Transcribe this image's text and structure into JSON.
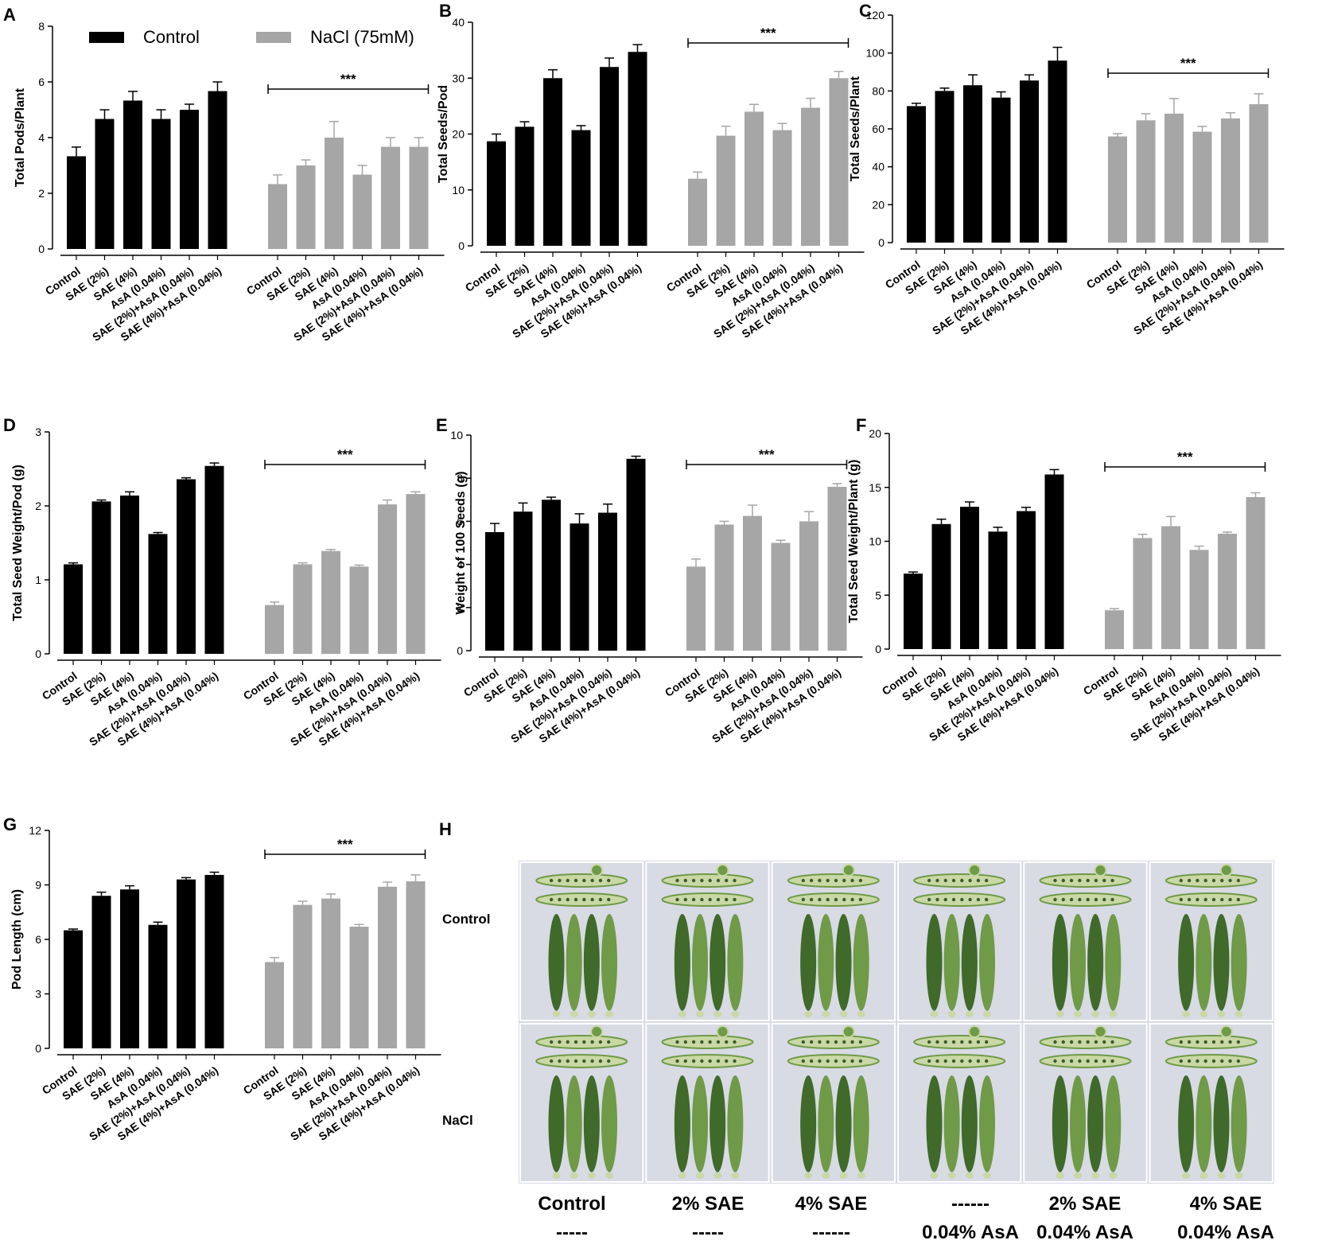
{
  "chart_data": [
    {
      "panel": "A",
      "type": "bar",
      "ylabel": "Total Pods/Plant",
      "ylim": [
        0,
        8
      ],
      "yticks": [
        0,
        2,
        4,
        6,
        8
      ],
      "categories": [
        "Control",
        "SAE (2%)",
        "SAE (4%)",
        "AsA (0.04%)",
        "SAE (2%)+AsA (0.04%)",
        "SAE (4%)+AsA (0.04%)"
      ],
      "series": [
        {
          "name": "Control",
          "color": "#000000",
          "values": [
            3.33,
            4.67,
            5.33,
            4.67,
            5.0,
            5.67
          ],
          "errors": [
            0.33,
            0.33,
            0.33,
            0.33,
            0.2,
            0.33
          ]
        },
        {
          "name": "NaCl (75mM)",
          "color": "#a6a6a6",
          "values": [
            2.33,
            3.0,
            4.0,
            2.67,
            3.67,
            3.67
          ],
          "errors": [
            0.33,
            0.2,
            0.58,
            0.33,
            0.33,
            0.33
          ]
        }
      ],
      "significance": "***"
    },
    {
      "panel": "B",
      "type": "bar",
      "ylabel": "Total Seeds/Pod",
      "ylim": [
        0,
        40
      ],
      "yticks": [
        0,
        10,
        20,
        30,
        40
      ],
      "categories": [
        "Control",
        "SAE (2%)",
        "SAE (4%)",
        "AsA (0.04%)",
        "SAE (2%)+AsA (0.04%)",
        "SAE (4%)+AsA (0.04%)"
      ],
      "series": [
        {
          "name": "Control",
          "color": "#000000",
          "values": [
            18.7,
            21.3,
            30.0,
            20.7,
            32.0,
            34.7
          ],
          "errors": [
            1.3,
            0.9,
            1.5,
            0.8,
            1.6,
            1.3
          ]
        },
        {
          "name": "NaCl (75mM)",
          "color": "#a6a6a6",
          "values": [
            12.0,
            19.7,
            24.0,
            20.7,
            24.7,
            30.0
          ],
          "errors": [
            1.2,
            1.7,
            1.3,
            1.2,
            1.7,
            1.2
          ]
        }
      ],
      "significance": "***"
    },
    {
      "panel": "C",
      "type": "bar",
      "ylabel": "Total Seeds/Plant",
      "ylim": [
        0,
        120
      ],
      "yticks": [
        0,
        20,
        40,
        60,
        80,
        100,
        120
      ],
      "categories": [
        "Control",
        "SAE (2%)",
        "SAE (4%)",
        "AsA (0.04%)",
        "SAE (2%)+AsA (0.04%)",
        "SAE (4%)+AsA (0.04%)"
      ],
      "series": [
        {
          "name": "Control",
          "color": "#000000",
          "values": [
            72,
            80,
            83,
            76.5,
            85.5,
            96
          ],
          "errors": [
            1.5,
            1.5,
            5.5,
            3,
            3,
            7
          ]
        },
        {
          "name": "NaCl (75mM)",
          "color": "#a6a6a6",
          "values": [
            56,
            64.5,
            68,
            58.5,
            65.5,
            73
          ],
          "errors": [
            1.5,
            3.5,
            8,
            2.8,
            3,
            5.5
          ]
        }
      ],
      "significance": "***"
    },
    {
      "panel": "D",
      "type": "bar",
      "ylabel": "Total Seed Weight/Pod (g)",
      "ylim": [
        0,
        3
      ],
      "yticks": [
        0,
        1,
        2,
        3
      ],
      "categories": [
        "Control",
        "SAE (2%)",
        "SAE (4%)",
        "AsA (0.04%)",
        "SAE (2%)+AsA (0.04%)",
        "SAE (4%)+AsA (0.04%)"
      ],
      "series": [
        {
          "name": "Control",
          "color": "#000000",
          "values": [
            1.21,
            2.06,
            2.14,
            1.62,
            2.36,
            2.54
          ],
          "errors": [
            0.02,
            0.02,
            0.05,
            0.02,
            0.02,
            0.04
          ]
        },
        {
          "name": "NaCl (75mM)",
          "color": "#a6a6a6",
          "values": [
            0.66,
            1.21,
            1.39,
            1.18,
            2.02,
            2.16
          ],
          "errors": [
            0.04,
            0.02,
            0.02,
            0.02,
            0.06,
            0.03
          ]
        }
      ],
      "significance": "***"
    },
    {
      "panel": "E",
      "type": "bar",
      "ylabel": "Weight of 100 Seeds (g)",
      "ylim": [
        0,
        10
      ],
      "yticks": [
        0,
        2,
        4,
        6,
        8,
        10
      ],
      "categories": [
        "Control",
        "SAE (2%)",
        "SAE (4%)",
        "AsA (0.04%)",
        "SAE (2%)+AsA (0.04%)",
        "SAE (4%)+AsA (0.04%)"
      ],
      "series": [
        {
          "name": "Control",
          "color": "#000000",
          "values": [
            5.5,
            6.45,
            7.0,
            5.9,
            6.4,
            8.9
          ],
          "errors": [
            0.4,
            0.4,
            0.12,
            0.45,
            0.4,
            0.12
          ]
        },
        {
          "name": "NaCl (75mM)",
          "color": "#a6a6a6",
          "values": [
            3.9,
            5.85,
            6.25,
            5.0,
            6.0,
            7.6
          ],
          "errors": [
            0.35,
            0.15,
            0.5,
            0.12,
            0.45,
            0.15
          ]
        }
      ],
      "significance": "***"
    },
    {
      "panel": "F",
      "type": "bar",
      "ylabel": "Total Seed Weight/Plant (g)",
      "ylim": [
        0,
        20
      ],
      "yticks": [
        0,
        5,
        10,
        15,
        20
      ],
      "categories": [
        "Control",
        "SAE (2%)",
        "SAE (4%)",
        "AsA (0.04%)",
        "SAE (2%)+AsA (0.04%)",
        "SAE (4%)+AsA (0.04%)"
      ],
      "series": [
        {
          "name": "Control",
          "color": "#000000",
          "values": [
            7.0,
            11.6,
            13.2,
            10.9,
            12.8,
            16.2
          ],
          "errors": [
            0.15,
            0.45,
            0.45,
            0.4,
            0.35,
            0.45
          ]
        },
        {
          "name": "NaCl (75mM)",
          "color": "#a6a6a6",
          "values": [
            3.6,
            10.3,
            11.4,
            9.2,
            10.7,
            14.1
          ],
          "errors": [
            0.15,
            0.35,
            0.9,
            0.35,
            0.15,
            0.4
          ]
        }
      ],
      "significance": "***"
    },
    {
      "panel": "G",
      "type": "bar",
      "ylabel": "Pod Length (cm)",
      "ylim": [
        0,
        12
      ],
      "yticks": [
        0,
        3,
        6,
        9,
        12
      ],
      "categories": [
        "Control",
        "SAE (2%)",
        "SAE (4%)",
        "AsA (0.04%)",
        "SAE (2%)+AsA (0.04%)",
        "SAE (4%)+AsA (0.04%)"
      ],
      "series": [
        {
          "name": "Control",
          "color": "#000000",
          "values": [
            6.5,
            8.4,
            8.75,
            6.8,
            9.3,
            9.55
          ],
          "errors": [
            0.07,
            0.2,
            0.2,
            0.15,
            0.1,
            0.15
          ]
        },
        {
          "name": "NaCl (75mM)",
          "color": "#a6a6a6",
          "values": [
            4.75,
            7.9,
            8.25,
            6.7,
            8.9,
            9.2
          ],
          "errors": [
            0.25,
            0.2,
            0.25,
            0.12,
            0.25,
            0.35
          ]
        }
      ],
      "significance": "***"
    }
  ],
  "legend": {
    "items": [
      {
        "label": "Control",
        "color": "#000000"
      },
      {
        "label": "NaCl (75mM)",
        "color": "#a6a6a6"
      }
    ]
  },
  "photo_panel": {
    "letter": "H",
    "rows": [
      "Control",
      "NaCl"
    ],
    "columns": [
      {
        "line1": "Control",
        "line2": "-----"
      },
      {
        "line1": "2% SAE",
        "line2": "-----"
      },
      {
        "line1": "4% SAE",
        "line2": "------"
      },
      {
        "line1": "------",
        "line2": "0.04% AsA"
      },
      {
        "line1": "2% SAE",
        "line2": "0.04% AsA"
      },
      {
        "line1": "4% SAE",
        "line2": "0.04% AsA"
      }
    ],
    "colors": {
      "background": "#d8dae4",
      "pod_dark": "#3f6a2a",
      "pod_light": "#6f9a47",
      "slice": "#c9d8a4",
      "seed": "#3e5a2e"
    }
  }
}
